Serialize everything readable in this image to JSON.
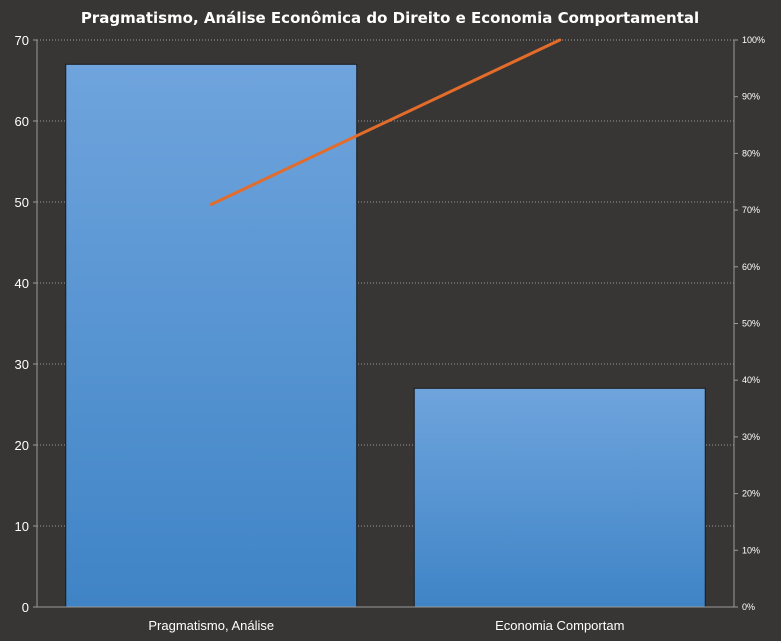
{
  "chart_data": {
    "type": "bar",
    "title": "Pragmatismo, Análise Econômica do Direito  e Economia Comportamental",
    "categories": [
      "Pragmatismo, Análise",
      "Economia Comportam"
    ],
    "series": [
      {
        "values": [
          67,
          27
        ],
        "axis": "left",
        "kind": "bar"
      },
      {
        "values": [
          71,
          100
        ],
        "axis": "right",
        "kind": "line",
        "unit": "%"
      }
    ],
    "ylim": [
      0,
      70
    ],
    "yticks": [
      "0",
      "10",
      "20",
      "30",
      "40",
      "50",
      "60",
      "70"
    ],
    "y2lim": [
      0,
      100
    ],
    "y2ticks": [
      "0%",
      "10%",
      "20%",
      "30%",
      "40%",
      "50%",
      "60%",
      "70%",
      "80%",
      "90%",
      "100%"
    ],
    "grid": "horizontal dotted",
    "colors": {
      "background": "#383634",
      "bar_top": "#6fa4dd",
      "bar_bottom": "#3f84c6",
      "line": "#e46c2a",
      "gridline": "#9a9a9a",
      "text": "#ffffff"
    }
  }
}
